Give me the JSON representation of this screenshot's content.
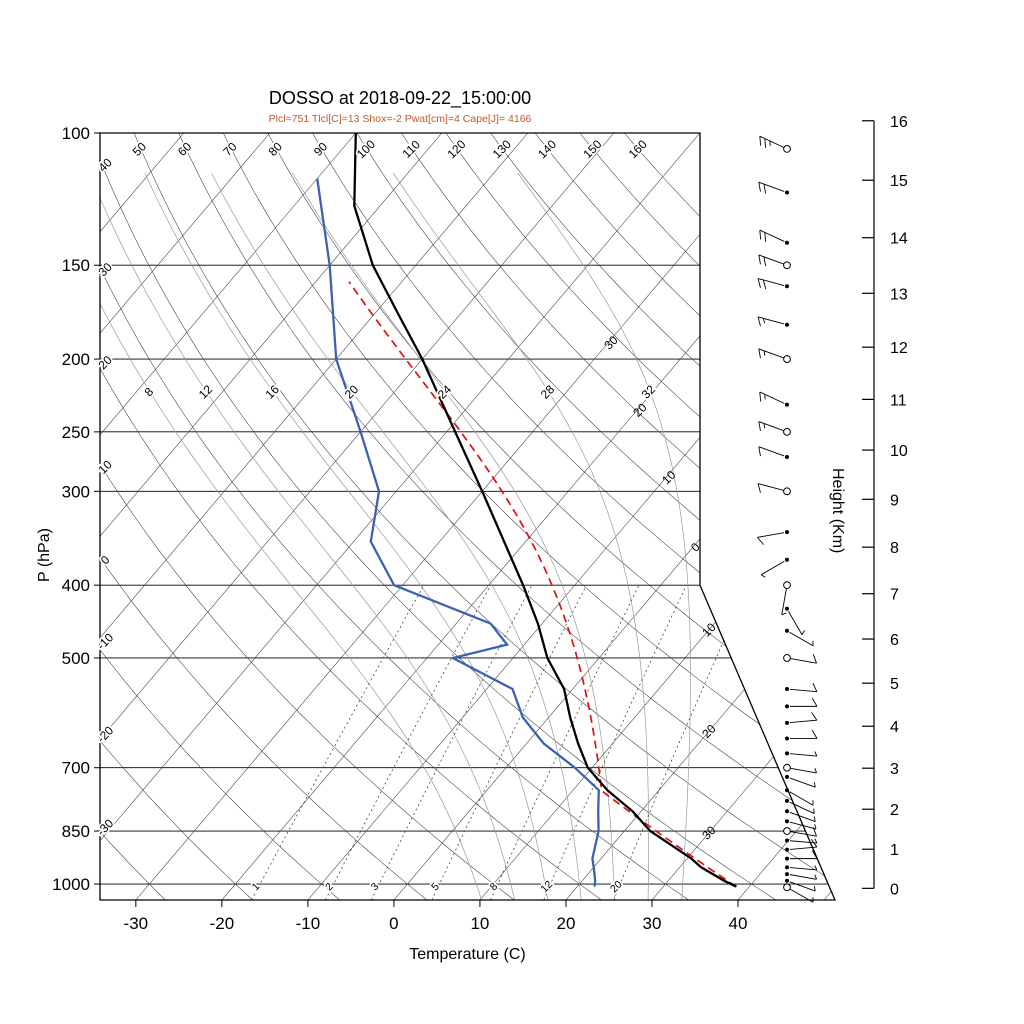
{
  "title": "DOSSO at 2018-09-22_15:00:00",
  "subtitle": "Plcl=751 Tlcl[C]=13 Shox=-2 Pwat[cm]=4 Cape[J]= 4166",
  "colors": {
    "temperature_curve": "#000000",
    "dewpoint_curve": "#3d63ae",
    "parcel_curve": "#dd1111",
    "subtitle_text": "#c05a2a",
    "grid_line": "#3a3a3a",
    "moist_adiabat_line": "#999999",
    "frame": "#000000"
  },
  "axes": {
    "pressure_label": "P (hPa)",
    "pressure_ticks": [
      100,
      150,
      200,
      250,
      300,
      400,
      500,
      700,
      850,
      1000
    ],
    "temperature_label": "Temperature (C)",
    "temperature_ticks": [
      -30,
      -20,
      -10,
      0,
      10,
      20,
      30,
      40
    ],
    "height_label": "Height (Km)",
    "height_ticks": [
      0,
      1,
      2,
      3,
      4,
      5,
      6,
      7,
      8,
      9,
      10,
      11,
      12,
      13,
      14,
      15,
      16
    ]
  },
  "chart_data": {
    "type": "skewt-log-p-sounding",
    "station": "DOSSO",
    "valid_time": "2018-09-22_15:00:00",
    "indices": {
      "Plcl_hPa": 751,
      "Tlcl_C": 13,
      "Shox": -2,
      "Pwat_cm": 4,
      "Cape_J": 4166
    },
    "isotherms_C": {
      "min": -110,
      "max": 50,
      "step": 10
    },
    "dry_adiabats_C": {
      "min": -30,
      "max": 160,
      "step": 10
    },
    "dry_adiabat_labels_left": [
      "40",
      "30",
      "20",
      "10",
      "0",
      "-10",
      "-20",
      "-30"
    ],
    "dry_adiabat_labels_top": [
      "50",
      "60",
      "70",
      "80",
      "90",
      "100",
      "110",
      "120",
      "130",
      "140",
      "150",
      "160"
    ],
    "isotherm_edge_labels": [
      {
        "T": -30,
        "text": "30"
      },
      {
        "T": -20,
        "text": "20"
      },
      {
        "T": -10,
        "text": "10"
      },
      {
        "T": 0,
        "text": "0"
      },
      {
        "T": 10,
        "text": "10"
      },
      {
        "T": 20,
        "text": "20"
      },
      {
        "T": 30,
        "text": "30"
      }
    ],
    "moist_adiabats_C": [
      8,
      12,
      16,
      20,
      24,
      28,
      32
    ],
    "mixing_ratio_g_kg": [
      1,
      2,
      3,
      5,
      8,
      12,
      20
    ],
    "temperature_profile": {
      "pressure_hPa": [
        1008,
        990,
        950,
        925,
        850,
        800,
        750,
        700,
        650,
        600,
        550,
        500,
        450,
        400,
        350,
        300,
        250,
        200,
        175,
        150,
        125,
        100
      ],
      "temp_C": [
        38.5,
        36.5,
        32.5,
        30.5,
        23,
        19,
        14,
        9.5,
        6,
        2.5,
        -1,
        -6,
        -10.5,
        -16,
        -22.5,
        -30,
        -39,
        -50,
        -57,
        -65,
        -73,
        -80
      ]
    },
    "dewpoint_profile": {
      "pressure_hPa": [
        1008,
        990,
        950,
        925,
        850,
        800,
        750,
        700,
        650,
        600,
        550,
        500,
        480,
        450,
        400,
        350,
        300,
        250,
        200,
        150,
        115
      ],
      "dewpoint_C": [
        22,
        21.5,
        20,
        19,
        17,
        15,
        13,
        8,
        2,
        -3,
        -7,
        -17,
        -12,
        -16,
        -31,
        -38,
        -42,
        -50,
        -60,
        -70,
        -80
      ]
    },
    "parcel": {
      "surface_pressure_hPa": 1008,
      "surface_temperature_C": 38.5,
      "lcl_pressure_hPa": 751,
      "lcl_temperature_C": 13,
      "top_pressure_hPa": 160
    },
    "winds": {
      "columns": [
        "p_hPa",
        "dir_deg",
        "spd_kt",
        "open_circle"
      ],
      "levels": [
        [
          1010,
          120,
          4,
          1
        ],
        [
          990,
          110,
          5,
          0
        ],
        [
          970,
          100,
          6,
          0
        ],
        [
          950,
          95,
          7,
          0
        ],
        [
          925,
          90,
          8,
          0
        ],
        [
          900,
          85,
          8,
          0
        ],
        [
          875,
          95,
          7,
          0
        ],
        [
          850,
          100,
          8,
          1
        ],
        [
          825,
          105,
          7,
          0
        ],
        [
          800,
          110,
          6,
          0
        ],
        [
          775,
          115,
          6,
          0
        ],
        [
          750,
          120,
          5,
          0
        ],
        [
          720,
          110,
          5,
          0
        ],
        [
          700,
          100,
          6,
          1
        ],
        [
          670,
          95,
          7,
          0
        ],
        [
          640,
          90,
          9,
          0
        ],
        [
          610,
          85,
          10,
          0
        ],
        [
          580,
          90,
          10,
          0
        ],
        [
          550,
          95,
          9,
          0
        ],
        [
          500,
          100,
          8,
          1
        ],
        [
          460,
          120,
          6,
          0
        ],
        [
          430,
          150,
          5,
          0
        ],
        [
          400,
          190,
          5,
          1
        ],
        [
          370,
          240,
          6,
          0
        ],
        [
          340,
          260,
          8,
          0
        ],
        [
          300,
          285,
          10,
          1
        ],
        [
          270,
          290,
          12,
          0
        ],
        [
          250,
          290,
          13,
          1
        ],
        [
          230,
          295,
          14,
          0
        ],
        [
          200,
          290,
          15,
          1
        ],
        [
          180,
          285,
          15,
          0
        ],
        [
          160,
          285,
          18,
          0
        ],
        [
          150,
          290,
          18,
          1
        ],
        [
          140,
          295,
          20,
          0
        ],
        [
          120,
          290,
          22,
          0
        ],
        [
          105,
          295,
          25,
          1
        ]
      ]
    }
  }
}
